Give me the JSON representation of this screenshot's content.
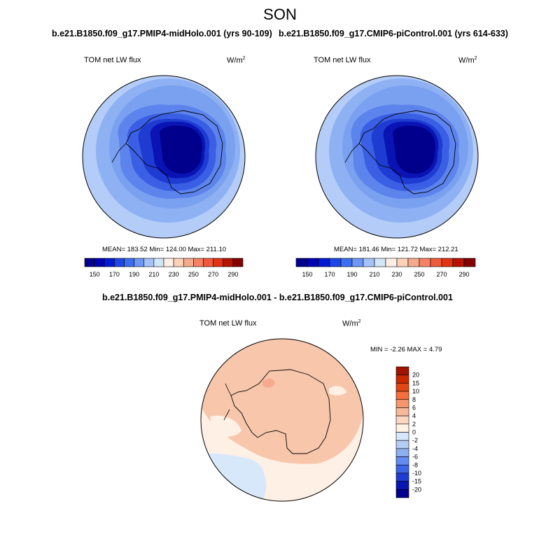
{
  "figure": {
    "season_title": "SON",
    "diff_title": "b.e21.B1850.f09_g17.PMIP4-midHolo.001 - b.e21.B1850.f09_g17.CMIP6-piControl.001"
  },
  "panels": [
    {
      "case_title": "b.e21.B1850.f09_g17.PMIP4-midHolo.001 (yrs 90-109)",
      "variable": "TOM net LW flux",
      "units_base": "W/m",
      "units_exp": "2",
      "stats": "MEAN= 183.52  Min= 124.00  Max= 211.10"
    },
    {
      "case_title": "b.e21.B1850.f09_g17.CMIP6-piControl.001 (yrs 614-633)",
      "variable": "TOM net LW flux",
      "units_base": "W/m",
      "units_exp": "2",
      "stats": "MEAN= 181.46  Min= 121.72  Max= 212.21"
    },
    {
      "variable": "TOM net LW flux",
      "units_base": "W/m",
      "units_exp": "2",
      "stats": "MIN =  -2.26 MAX =   4.79"
    }
  ],
  "abs_colorbar": {
    "colors": [
      "#00008c",
      "#0000b4",
      "#0019d2",
      "#1e46e6",
      "#3c6ef0",
      "#6e96f5",
      "#a5c3fa",
      "#d2e6fa",
      "#fff0e6",
      "#fcd2b9",
      "#f5aa8c",
      "#f58264",
      "#f05a3c",
      "#e13214",
      "#b41400",
      "#820000"
    ],
    "labels": [
      "150",
      "170",
      "190",
      "210",
      "230",
      "250",
      "270",
      "290"
    ]
  },
  "diff_colorbar": {
    "colors_top_to_bottom": [
      "#a01400",
      "#c82800",
      "#e14614",
      "#f56e3c",
      "#f5966e",
      "#f7b99a",
      "#fad8c3",
      "#fff3e6",
      "#d7e8fa",
      "#b4cdf5",
      "#8caff0",
      "#648cf0",
      "#3c64e6",
      "#1e3cd2",
      "#0a14b4",
      "#00008c"
    ],
    "labels_top_to_bottom": [
      "20",
      "15",
      "10",
      "8",
      "6",
      "4",
      "2",
      "0",
      "-2",
      "-4",
      "-6",
      "-8",
      "-10",
      "-15",
      "-20"
    ]
  }
}
